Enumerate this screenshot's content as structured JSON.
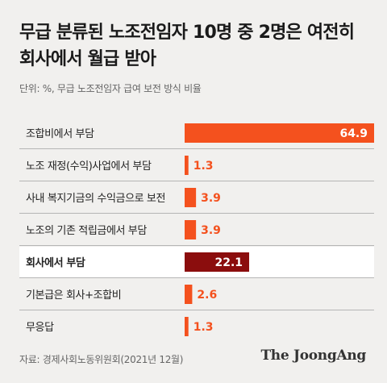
{
  "title": "무급 분류된 노조전임자 10명 중 2명은 여전히 회사에서 월급 받아",
  "subtitle": "단위: %, 무급 노조전임자 급여 보전 방식 비율",
  "source": "자료: 경제사회노동위원회(2021년 12월)",
  "logo": "The JoongAng",
  "colors": {
    "accent": "#f4511e",
    "highlight": "#8b0d0d",
    "background": "#f1f0ee",
    "highlight_row": "#ffffff",
    "divider": "#b5b5b5"
  },
  "chart_data": {
    "type": "bar",
    "orientation": "horizontal",
    "categories": [
      "조합비에서 부담",
      "노조 재정(수익)사업에서 부담",
      "사내 복지기금의 수익금으로 보전",
      "노조의 기존 적립금에서 부담",
      "회사에서 부담",
      "기본급은 회사+조합비",
      "무응답"
    ],
    "values": [
      64.9,
      1.3,
      3.9,
      3.9,
      22.1,
      2.6,
      1.3
    ],
    "value_labels": [
      "64.9",
      "1.3",
      "3.9",
      "3.9",
      "22.1",
      "2.6",
      "1.3"
    ],
    "highlight_index": 4,
    "xlim": [
      0,
      64.9
    ]
  }
}
